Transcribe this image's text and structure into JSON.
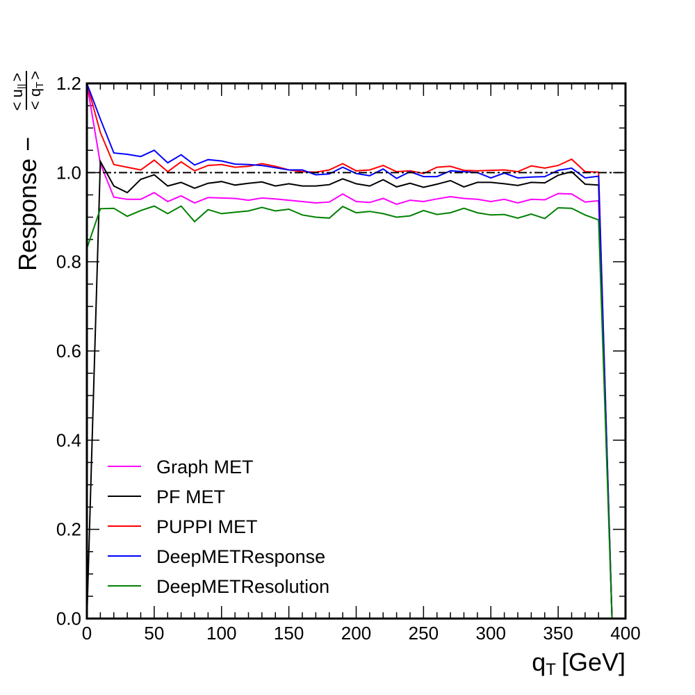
{
  "chart_data": {
    "type": "line",
    "title": "",
    "xlabel_main": "q",
    "xlabel_sub": "T",
    "xlabel_unit": "[GeV]",
    "ylabel_main": "Response −",
    "ylabel_num": "< u",
    "ylabel_num_sub": "||",
    "ylabel_num_close": ">",
    "ylabel_den": "< q",
    "ylabel_den_sub": "T",
    "ylabel_den_close": ">",
    "xlim": [
      0,
      400
    ],
    "ylim": [
      0,
      1.2
    ],
    "xticks": [
      0,
      50,
      100,
      150,
      200,
      250,
      300,
      350,
      400
    ],
    "xtick_labels": [
      "0",
      "50",
      "100",
      "150",
      "200",
      "250",
      "300",
      "350",
      "400"
    ],
    "yticks": [
      0,
      0.2,
      0.4,
      0.6,
      0.8,
      1.0,
      1.2
    ],
    "ytick_labels": [
      "0.0",
      "0.2",
      "0.4",
      "0.6",
      "0.8",
      "1.0",
      "1.2"
    ],
    "grid": false,
    "legend_position": "lower-left",
    "reference_line": {
      "y": 1.0,
      "style": "dash-dot",
      "color": "#000000"
    },
    "x": [
      0,
      10,
      20,
      30,
      40,
      50,
      60,
      70,
      80,
      90,
      100,
      110,
      120,
      130,
      140,
      150,
      160,
      170,
      180,
      190,
      200,
      210,
      220,
      230,
      240,
      250,
      260,
      270,
      280,
      290,
      300,
      310,
      320,
      330,
      340,
      350,
      360,
      370,
      380,
      390
    ],
    "series": [
      {
        "name": "Graph MET",
        "color": "#ff00ff",
        "values": [
          1.2,
          1.02,
          0.945,
          0.94,
          0.94,
          0.955,
          0.935,
          0.948,
          0.932,
          0.944,
          0.943,
          0.942,
          0.938,
          0.943,
          0.941,
          0.938,
          0.935,
          0.932,
          0.934,
          0.952,
          0.935,
          0.933,
          0.942,
          0.929,
          0.938,
          0.935,
          0.941,
          0.946,
          0.942,
          0.94,
          0.935,
          0.94,
          0.932,
          0.94,
          0.939,
          0.953,
          0.952,
          0.934,
          0.937,
          0.0
        ]
      },
      {
        "name": "PF MET",
        "color": "#000000",
        "values": [
          0.0,
          1.025,
          0.97,
          0.955,
          0.985,
          0.995,
          0.97,
          0.978,
          0.965,
          0.976,
          0.98,
          0.972,
          0.976,
          0.979,
          0.97,
          0.975,
          0.97,
          0.97,
          0.973,
          0.986,
          0.975,
          0.97,
          0.984,
          0.968,
          0.976,
          0.967,
          0.974,
          0.982,
          0.968,
          0.978,
          0.978,
          0.975,
          0.971,
          0.978,
          0.977,
          0.994,
          1.002,
          0.974,
          0.972,
          0.0
        ]
      },
      {
        "name": "PUPPI MET",
        "color": "#ff0000",
        "values": [
          1.2,
          1.09,
          1.018,
          1.012,
          1.006,
          1.028,
          1.002,
          1.024,
          1.004,
          1.016,
          1.018,
          1.012,
          1.014,
          1.02,
          1.014,
          1.006,
          1.002,
          1.001,
          1.006,
          1.02,
          1.004,
          1.006,
          1.016,
          1.002,
          1.004,
          0.998,
          1.012,
          1.014,
          1.005,
          1.004,
          1.005,
          1.006,
          1.002,
          1.015,
          1.01,
          1.016,
          1.03,
          1.002,
          1.001,
          0.0
        ]
      },
      {
        "name": "DeepMETResponse",
        "color": "#0000ff",
        "values": [
          1.2,
          1.12,
          1.044,
          1.041,
          1.036,
          1.05,
          1.022,
          1.04,
          1.017,
          1.029,
          1.026,
          1.019,
          1.018,
          1.016,
          1.011,
          1.006,
          1.006,
          0.995,
          0.997,
          1.012,
          0.998,
          0.993,
          1.008,
          0.987,
          1.002,
          0.991,
          0.991,
          1.004,
          1.002,
          1.0,
          0.988,
          0.999,
          0.988,
          0.99,
          0.991,
          1.005,
          1.01,
          0.988,
          0.992,
          0.0
        ]
      },
      {
        "name": "DeepMETResolution",
        "color": "#008000",
        "values": [
          0.83,
          0.919,
          0.92,
          0.902,
          0.915,
          0.925,
          0.908,
          0.925,
          0.89,
          0.917,
          0.908,
          0.911,
          0.914,
          0.922,
          0.914,
          0.918,
          0.905,
          0.9,
          0.898,
          0.924,
          0.91,
          0.913,
          0.908,
          0.9,
          0.903,
          0.915,
          0.906,
          0.91,
          0.92,
          0.91,
          0.905,
          0.906,
          0.898,
          0.907,
          0.897,
          0.921,
          0.92,
          0.905,
          0.894,
          0.0
        ]
      }
    ]
  }
}
